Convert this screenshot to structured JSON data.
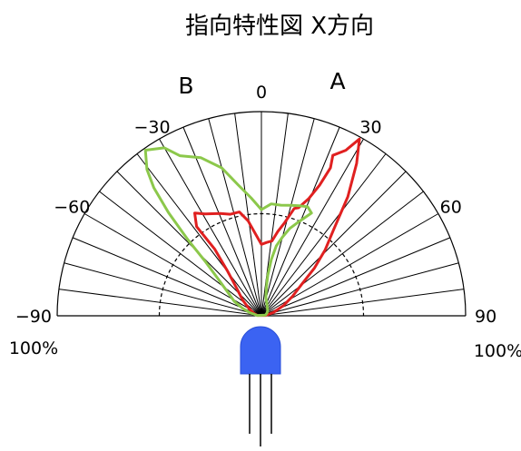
{
  "chart_data": {
    "type": "polar",
    "title": "指向特性図 X方向",
    "angle_range": [
      -90,
      90
    ],
    "angle_labels": [
      "−90",
      "−60",
      "−30",
      "0",
      "30",
      "60",
      "90"
    ],
    "angle_values": [
      -90,
      -60,
      -30,
      0,
      30,
      60,
      90
    ],
    "radial_max_label": "100%",
    "radial_max": 100,
    "series_labels": {
      "left": "B",
      "right": "A"
    },
    "grid": true,
    "series": [
      {
        "color": "#e02020",
        "points": [
          [
            -85,
            2
          ],
          [
            -72,
            4
          ],
          [
            -60,
            7
          ],
          [
            -50,
            12
          ],
          [
            -42,
            18
          ],
          [
            -37,
            28
          ],
          [
            -35,
            40
          ],
          [
            -36,
            54
          ],
          [
            -33,
            60
          ],
          [
            -29,
            57
          ],
          [
            -22,
            54
          ],
          [
            -17,
            52
          ],
          [
            -12,
            52
          ],
          [
            -8,
            47
          ],
          [
            -4,
            40
          ],
          [
            0,
            35
          ],
          [
            4,
            36
          ],
          [
            8,
            37
          ],
          [
            11,
            42
          ],
          [
            14,
            47
          ],
          [
            17,
            55
          ],
          [
            19,
            56
          ],
          [
            22,
            62
          ],
          [
            24,
            70
          ],
          [
            25,
            80
          ],
          [
            24,
            86
          ],
          [
            27,
            91
          ],
          [
            29,
            99
          ],
          [
            32,
            88
          ],
          [
            36,
            72
          ],
          [
            40,
            55
          ],
          [
            44,
            45
          ],
          [
            48,
            35
          ],
          [
            52,
            25
          ],
          [
            58,
            18
          ],
          [
            65,
            12
          ],
          [
            75,
            6
          ],
          [
            85,
            2
          ]
        ]
      },
      {
        "color": "#8cc84b",
        "points": [
          [
            -85,
            2
          ],
          [
            -75,
            6
          ],
          [
            -68,
            10
          ],
          [
            -62,
            15
          ],
          [
            -55,
            20
          ],
          [
            -50,
            27
          ],
          [
            -46,
            38
          ],
          [
            -44,
            52
          ],
          [
            -42,
            68
          ],
          [
            -40,
            82
          ],
          [
            -38,
            91
          ],
          [
            -35,
            99
          ],
          [
            -30,
            95
          ],
          [
            -27,
            88
          ],
          [
            -21,
            83
          ],
          [
            -15,
            75
          ],
          [
            -10,
            65
          ],
          [
            -5,
            58
          ],
          [
            0,
            52
          ],
          [
            5,
            55
          ],
          [
            10,
            55
          ],
          [
            15,
            56
          ],
          [
            19,
            57
          ],
          [
            23,
            58
          ],
          [
            26,
            56
          ],
          [
            22,
            50
          ],
          [
            18,
            45
          ],
          [
            15,
            40
          ],
          [
            12,
            35
          ],
          [
            10,
            28
          ],
          [
            9,
            20
          ],
          [
            10,
            14
          ],
          [
            14,
            9
          ],
          [
            22,
            7
          ],
          [
            35,
            5
          ],
          [
            50,
            4
          ],
          [
            65,
            3
          ],
          [
            80,
            2
          ]
        ]
      }
    ]
  }
}
